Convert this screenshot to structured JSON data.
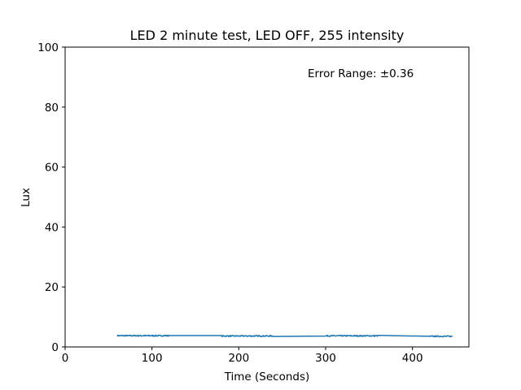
{
  "chart_data": {
    "type": "line",
    "title": "LED 2 minute test, LED OFF, 255 intensity",
    "xlabel": "Time (Seconds)",
    "ylabel": "Lux",
    "xlim": [
      0,
      465
    ],
    "ylim": [
      0,
      100
    ],
    "x_ticks": [
      0,
      100,
      200,
      300,
      400
    ],
    "y_ticks": [
      0,
      20,
      40,
      60,
      80,
      100
    ],
    "grid": false,
    "annotation": "Error Range: ±0.36",
    "line_color": "#1f77b4",
    "series": [
      {
        "name": "Lux",
        "segments": [
          {
            "x_start": 60,
            "x_end": 120,
            "mean": 3.75,
            "noise": 0.18
          },
          {
            "x_start": 180,
            "x_end": 240,
            "mean": 3.65,
            "noise": 0.18
          },
          {
            "x_start": 300,
            "x_end": 360,
            "mean": 3.7,
            "noise": 0.18
          },
          {
            "x_start": 420,
            "x_end": 446,
            "mean": 3.55,
            "noise": 0.18
          }
        ]
      }
    ]
  }
}
